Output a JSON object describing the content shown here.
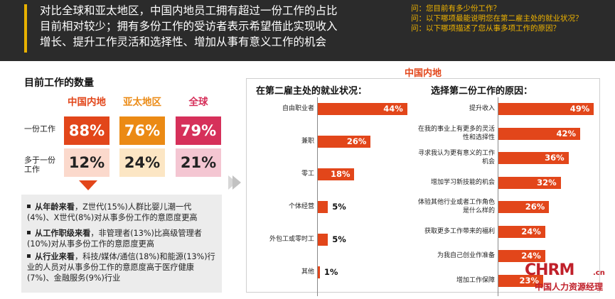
{
  "banner": {
    "lines": [
      "对比全球和亚太地区，中国内地员工拥有超过一份工作的占比",
      "目前相对较少；拥有多份工作的受访者表示希望借此实现收入",
      "增长、提升工作灵活和选择性、增加从事有意义工作的机会"
    ],
    "questions": [
      "问：您目前有多少份工作？",
      "问：以下哪项最能说明您在第二雇主处的就业状况？",
      "问：以下哪项描述了您从事多项工作的原因？"
    ]
  },
  "left": {
    "title": "目前工作的数量",
    "columns": [
      "中国内地",
      "亚太地区",
      "全球"
    ],
    "rows": [
      {
        "label": "一份工作",
        "values": [
          "88%",
          "76%",
          "79%"
        ]
      },
      {
        "label": "多于一份\n工作",
        "values": [
          "12%",
          "24%",
          "21%"
        ]
      }
    ],
    "notes": [
      {
        "bold": "从年龄来看",
        "rest": "，Z世代(15%)人群比婴儿潮一代(4%)、X世代(8%)对从事多份工作的意愿度更高"
      },
      {
        "bold": "从工作职级来看",
        "rest": "，非管理者(13%)比高级管理者(10%)对从事多份工作的意愿度更高"
      },
      {
        "bold": "从行业来看",
        "rest": "，科技/媒体/通信(18%)和能源(13%)行业的人员对从事多份工作的意愿度高于医疗健康(7%)、金融服务(9%)行业"
      }
    ]
  },
  "right": {
    "region_title": "中国内地"
  },
  "colors": {
    "accent": "#e2461a",
    "china": "#e2461a",
    "apac": "#eb8a14",
    "global": "#d6305a",
    "china_light": "#fbd9cc",
    "apac_light": "#fce6c4",
    "global_light": "#f4c6d2",
    "banner_bg": "#2b2b2b",
    "question_text": "#f0b400"
  },
  "watermark": {
    "main": "CHRM",
    "suffix": ".cn",
    "sub": "中国人力资源经理"
  },
  "chart_data": [
    {
      "type": "bar",
      "orientation": "horizontal",
      "title": "在第二雇主处的就业状况：",
      "categories": [
        "自由职业者",
        "兼职",
        "零工",
        "个体经营",
        "外包工或零时工",
        "其他"
      ],
      "values": [
        44,
        26,
        18,
        5,
        5,
        1
      ],
      "value_labels": [
        "44%",
        "26%",
        "18%",
        "5%",
        "5%",
        "1%"
      ],
      "unit": "%",
      "xlim": [
        0,
        50
      ],
      "grid": false
    },
    {
      "type": "bar",
      "orientation": "horizontal",
      "title": "选择第二份工作的原因：",
      "categories": [
        "提升收入",
        "在我的事业上有更多的灵活性和选择性",
        "寻求我认为更有意义的工作机会",
        "增加学习新技能的机会",
        "体验其他行业或者工作角色是什么样的",
        "获取更多工作带来的福利",
        "为我自己创业作准备",
        "增加工作保障"
      ],
      "values": [
        49,
        42,
        36,
        32,
        26,
        24,
        24,
        23
      ],
      "value_labels": [
        "49%",
        "42%",
        "36%",
        "32%",
        "26%",
        "24%",
        "24%",
        "23%"
      ],
      "unit": "%",
      "xlim": [
        0,
        50
      ],
      "grid": false
    }
  ]
}
